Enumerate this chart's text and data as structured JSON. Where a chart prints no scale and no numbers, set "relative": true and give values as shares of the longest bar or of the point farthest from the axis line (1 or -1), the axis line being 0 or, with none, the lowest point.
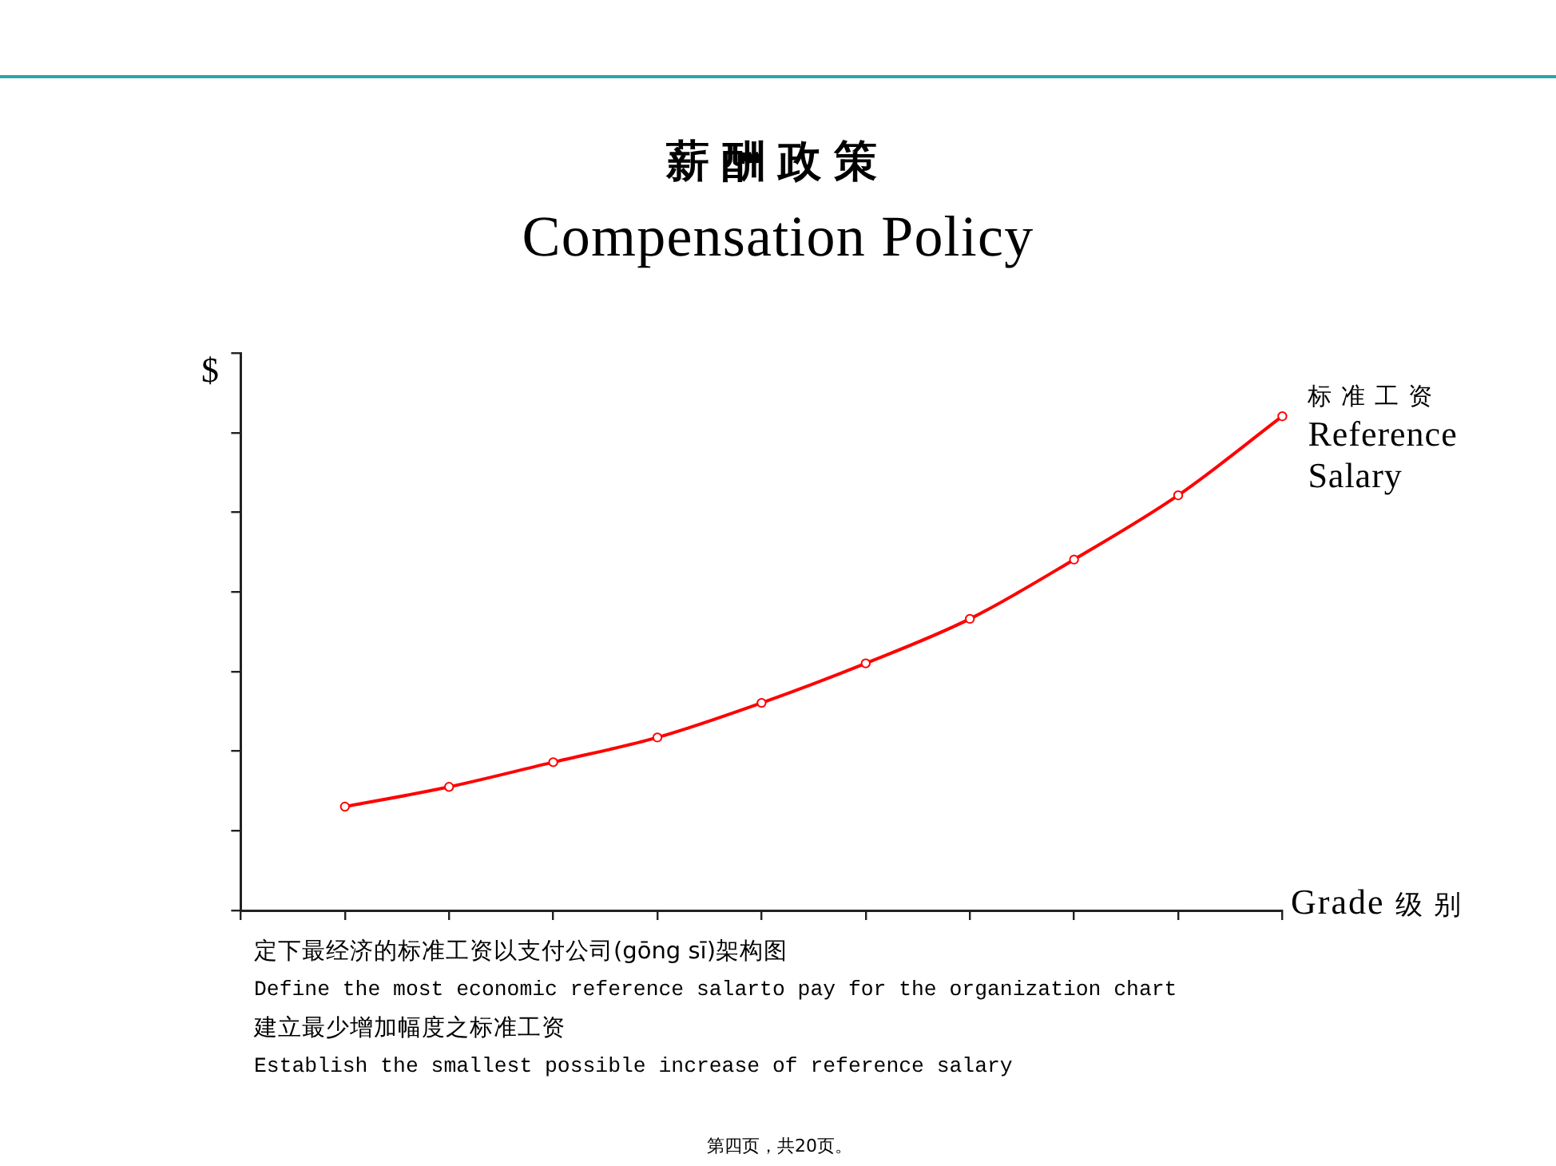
{
  "chart_data": {
    "type": "line",
    "title": "薪酬政策",
    "subtitle": "Compensation Policy",
    "xlabel": "Grade 级别",
    "ylabel": "$",
    "categories": [
      null,
      null,
      null,
      null,
      null,
      null,
      null,
      null,
      null,
      null
    ],
    "series": [
      {
        "name": "标准工资 Reference Salary",
        "color": "#ff0000",
        "values": [
          0.21,
          0.25,
          0.3,
          0.35,
          0.42,
          0.5,
          0.59,
          0.71,
          0.84,
          1
        ]
      }
    ],
    "relative": true,
    "marker": "circle",
    "line_style": "solid",
    "annotations": [
      "定下最经济的标准工资以支付公司(gōng sī)架构图",
      "Define the most economic reference salarto pay for the organization chart",
      "建立最少增加幅度之标准工资",
      "Establish the smallest possible increase of reference salary",
      "第四页，共20页。"
    ]
  }
}
